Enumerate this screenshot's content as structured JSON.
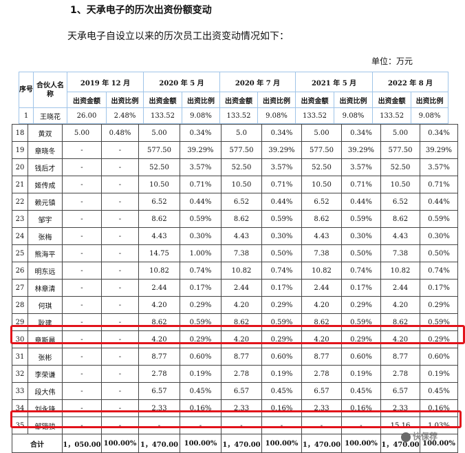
{
  "heading": "1、天承电子的历次出资份额变动",
  "intro": "天承电子自设立以来的历次员工出资变动情况如下：",
  "unit": "单位：万元",
  "table": {
    "seq_header": "序号",
    "partner_header": "合伙人名称",
    "periods": [
      "2019 年 12 月",
      "2020 年 5 月",
      "2020 年 7 月",
      "2021 年 5 月",
      "2022 年 8 月"
    ],
    "amount_label": "出资金额",
    "ratio_label": "出资比例",
    "first_row": [
      "1",
      "王晓花",
      "26.00",
      "2.48%",
      "133.52",
      "9.08%",
      "133.52",
      "9.08%",
      "133.52",
      "9.08%",
      "133.52",
      "9.08%"
    ],
    "rows": [
      [
        "18",
        "黄双",
        "5.00",
        "0.48%",
        "5.00",
        "0.34%",
        "5.0",
        "0.34%",
        "5.00",
        "0.34%",
        "5.00",
        "0.34%"
      ],
      [
        "19",
        "章晓冬",
        "-",
        "-",
        "577.50",
        "39.29%",
        "577.50",
        "39.29%",
        "577.50",
        "39.29%",
        "577.50",
        "39.29%"
      ],
      [
        "20",
        "钱后才",
        "-",
        "-",
        "52.50",
        "3.57%",
        "52.50",
        "3.57%",
        "52.50",
        "3.57%",
        "52.50",
        "3.57%"
      ],
      [
        "21",
        "姬传成",
        "-",
        "-",
        "10.50",
        "0.71%",
        "10.50",
        "0.71%",
        "10.50",
        "0.71%",
        "10.50",
        "0.71%"
      ],
      [
        "22",
        "赖元镇",
        "-",
        "-",
        "6.52",
        "0.44%",
        "6.52",
        "0.44%",
        "6.52",
        "0.44%",
        "6.52",
        "0.44%"
      ],
      [
        "23",
        "邹宇",
        "-",
        "-",
        "8.62",
        "0.59%",
        "8.62",
        "0.59%",
        "8.62",
        "0.59%",
        "8.62",
        "0.59%"
      ],
      [
        "24",
        "张梅",
        "-",
        "-",
        "4.43",
        "0.30%",
        "4.43",
        "0.30%",
        "4.43",
        "0.30%",
        "4.43",
        "0.30%"
      ],
      [
        "25",
        "熊海平",
        "-",
        "-",
        "14.75",
        "1.00%",
        "7.38",
        "0.50%",
        "7.38",
        "0.50%",
        "7.38",
        "0.50%"
      ],
      [
        "26",
        "明东远",
        "-",
        "-",
        "10.82",
        "0.74%",
        "10.82",
        "0.74%",
        "10.82",
        "0.74%",
        "10.82",
        "0.74%"
      ],
      [
        "27",
        "林章清",
        "-",
        "-",
        "2.44",
        "0.17%",
        "2.44",
        "0.17%",
        "2.44",
        "0.17%",
        "2.44",
        "0.17%"
      ],
      [
        "28",
        "何琪",
        "-",
        "-",
        "4.20",
        "0.29%",
        "4.20",
        "0.29%",
        "4.20",
        "0.29%",
        "4.20",
        "0.29%"
      ],
      [
        "29",
        "耿建",
        "-",
        "-",
        "8.62",
        "0.59%",
        "8.62",
        "0.59%",
        "8.62",
        "0.59%",
        "8.62",
        "0.59%"
      ],
      [
        "30",
        "章斯晨",
        "-",
        "-",
        "4.20",
        "0.29%",
        "4.20",
        "0.29%",
        "4.20",
        "0.29%",
        "4.20",
        "0.29%"
      ],
      [
        "31",
        "张彬",
        "-",
        "-",
        "8.77",
        "0.60%",
        "8.77",
        "0.60%",
        "8.77",
        "0.60%",
        "8.77",
        "0.60%"
      ],
      [
        "32",
        "李荣谦",
        "-",
        "-",
        "2.78",
        "0.19%",
        "2.78",
        "0.19%",
        "2.78",
        "0.19%",
        "2.78",
        "0.19%"
      ],
      [
        "33",
        "段大伟",
        "-",
        "-",
        "6.57",
        "0.45%",
        "6.57",
        "0.45%",
        "6.57",
        "0.45%",
        "6.57",
        "0.45%"
      ],
      [
        "34",
        "刘永锋",
        "-",
        "-",
        "2.33",
        "0.16%",
        "2.33",
        "0.16%",
        "2.33",
        "0.16%",
        "2.33",
        "0.16%"
      ],
      [
        "35",
        "邹锴骏",
        "-",
        "-",
        "-",
        "-",
        "-",
        "-",
        "-",
        "-",
        "15.16",
        "1.03%"
      ]
    ],
    "total": [
      "合计",
      "1，050.00",
      "100.00%",
      "1，470.00",
      "100.00%",
      "1，470.00",
      "100.00%",
      "1，470.00",
      "100.00%",
      "1，470.00",
      "100.00%"
    ]
  },
  "watermark": "快保荐",
  "highlight_color": "#e2121a"
}
